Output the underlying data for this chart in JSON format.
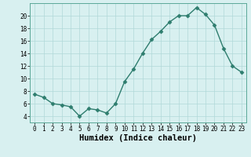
{
  "x": [
    0,
    1,
    2,
    3,
    4,
    5,
    6,
    7,
    8,
    9,
    10,
    11,
    12,
    13,
    14,
    15,
    16,
    17,
    18,
    19,
    20,
    21,
    22,
    23
  ],
  "y": [
    7.5,
    7.0,
    6.0,
    5.8,
    5.5,
    4.0,
    5.2,
    5.0,
    4.5,
    6.0,
    9.5,
    11.5,
    14.0,
    16.2,
    17.5,
    19.0,
    20.0,
    20.0,
    21.3,
    20.2,
    18.5,
    14.8,
    12.0,
    11.0
  ],
  "line_color": "#2e7d6e",
  "marker": "D",
  "marker_size": 2.5,
  "bg_color": "#d8f0f0",
  "grid_color": "#b0d8d8",
  "xlabel": "Humidex (Indice chaleur)",
  "xlim": [
    -0.5,
    23.5
  ],
  "ylim": [
    3,
    22
  ],
  "yticks": [
    4,
    6,
    8,
    10,
    12,
    14,
    16,
    18,
    20
  ],
  "xticks": [
    0,
    1,
    2,
    3,
    4,
    5,
    6,
    7,
    8,
    9,
    10,
    11,
    12,
    13,
    14,
    15,
    16,
    17,
    18,
    19,
    20,
    21,
    22,
    23
  ],
  "tick_fontsize": 5.5,
  "xlabel_fontsize": 7.5,
  "line_width": 1.0
}
